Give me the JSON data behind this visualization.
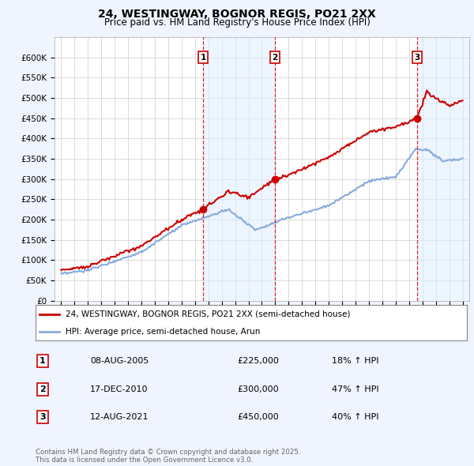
{
  "title": "24, WESTINGWAY, BOGNOR REGIS, PO21 2XX",
  "subtitle": "Price paid vs. HM Land Registry's House Price Index (HPI)",
  "legend_line1": "24, WESTINGWAY, BOGNOR REGIS, PO21 2XX (semi-detached house)",
  "legend_line2": "HPI: Average price, semi-detached house, Arun",
  "footer": "Contains HM Land Registry data © Crown copyright and database right 2025.\nThis data is licensed under the Open Government Licence v3.0.",
  "transactions": [
    {
      "label": "1",
      "date": "08-AUG-2005",
      "price": 225000,
      "hpi_pct": "18% ↑ HPI",
      "x": 2005.6
    },
    {
      "label": "2",
      "date": "17-DEC-2010",
      "price": 300000,
      "hpi_pct": "47% ↑ HPI",
      "x": 2010.96
    },
    {
      "label": "3",
      "date": "12-AUG-2021",
      "price": 450000,
      "hpi_pct": "40% ↑ HPI",
      "x": 2021.6
    }
  ],
  "vline_color": "#dd0000",
  "property_line_color": "#cc0000",
  "hpi_line_color": "#88aadd",
  "shade_color": "#ddeeff",
  "dot_color": "#cc0000",
  "ylim": [
    0,
    650000
  ],
  "yticks": [
    0,
    50000,
    100000,
    150000,
    200000,
    250000,
    300000,
    350000,
    400000,
    450000,
    500000,
    550000,
    600000
  ],
  "xlim": [
    1994.5,
    2025.5
  ],
  "xticks": [
    1995,
    1996,
    1997,
    1998,
    1999,
    2000,
    2001,
    2002,
    2003,
    2004,
    2005,
    2006,
    2007,
    2008,
    2009,
    2010,
    2011,
    2012,
    2013,
    2014,
    2015,
    2016,
    2017,
    2018,
    2019,
    2020,
    2021,
    2022,
    2023,
    2024,
    2025
  ],
  "background_color": "#f0f4ff",
  "plot_background": "#ffffff",
  "grid_color": "#cccccc",
  "label_box_color": "#cc0000"
}
